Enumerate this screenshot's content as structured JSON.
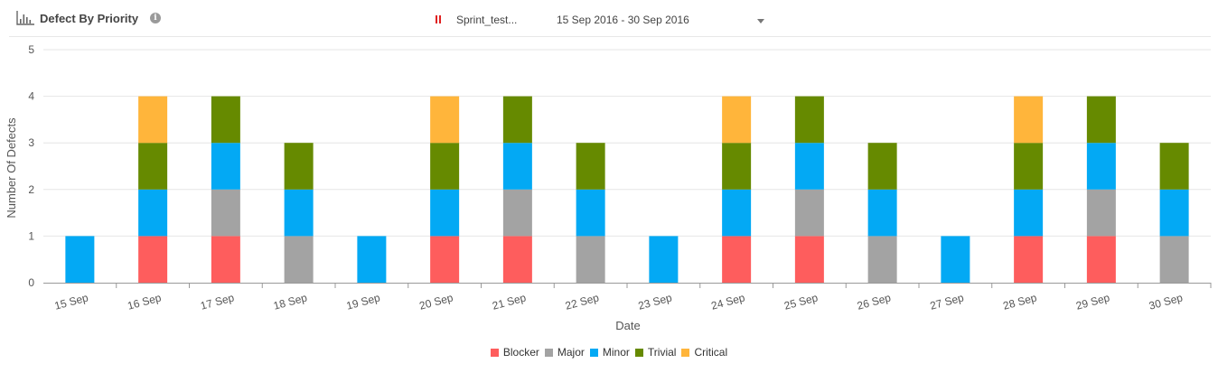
{
  "header": {
    "title": "Defect By Priority",
    "info_icon": "info-icon",
    "sprint_name": "Sprint_test...",
    "sprint_marker_color": "#e02020",
    "date_range": "15 Sep 2016 - 30 Sep 2016"
  },
  "legend": [
    {
      "label": "Blocker",
      "color": "#fe5d5d"
    },
    {
      "label": "Major",
      "color": "#a3a3a3"
    },
    {
      "label": "Minor",
      "color": "#03a9f4"
    },
    {
      "label": "Trivial",
      "color": "#668a00"
    },
    {
      "label": "Critical",
      "color": "#ffb53b"
    }
  ],
  "chart_data": {
    "type": "bar",
    "stacked": true,
    "categories": [
      "15 Sep",
      "16 Sep",
      "17 Sep",
      "18 Sep",
      "19 Sep",
      "20 Sep",
      "21 Sep",
      "22 Sep",
      "23 Sep",
      "24 Sep",
      "25 Sep",
      "26 Sep",
      "27 Sep",
      "28 Sep",
      "29 Sep",
      "30 Sep"
    ],
    "series": [
      {
        "name": "Blocker",
        "color": "#fe5d5d",
        "values": [
          0,
          1,
          1,
          0,
          0,
          1,
          1,
          0,
          0,
          1,
          1,
          0,
          0,
          1,
          1,
          0
        ]
      },
      {
        "name": "Major",
        "color": "#a3a3a3",
        "values": [
          0,
          0,
          1,
          1,
          0,
          0,
          1,
          1,
          0,
          0,
          1,
          1,
          0,
          0,
          1,
          1
        ]
      },
      {
        "name": "Minor",
        "color": "#03a9f4",
        "values": [
          1,
          1,
          1,
          1,
          1,
          1,
          1,
          1,
          1,
          1,
          1,
          1,
          1,
          1,
          1,
          1
        ]
      },
      {
        "name": "Trivial",
        "color": "#668a00",
        "values": [
          0,
          1,
          1,
          1,
          0,
          1,
          1,
          1,
          0,
          1,
          1,
          1,
          0,
          1,
          1,
          1
        ]
      },
      {
        "name": "Critical",
        "color": "#ffb53b",
        "values": [
          0,
          1,
          0,
          0,
          0,
          1,
          0,
          0,
          0,
          1,
          0,
          0,
          0,
          1,
          0,
          0
        ]
      }
    ],
    "xlabel": "Date",
    "ylabel": "Number Of Defects",
    "ylim": [
      0,
      5
    ],
    "yticks": [
      0,
      1,
      2,
      3,
      4,
      5
    ],
    "grid": true,
    "legend_position": "bottom-center"
  }
}
